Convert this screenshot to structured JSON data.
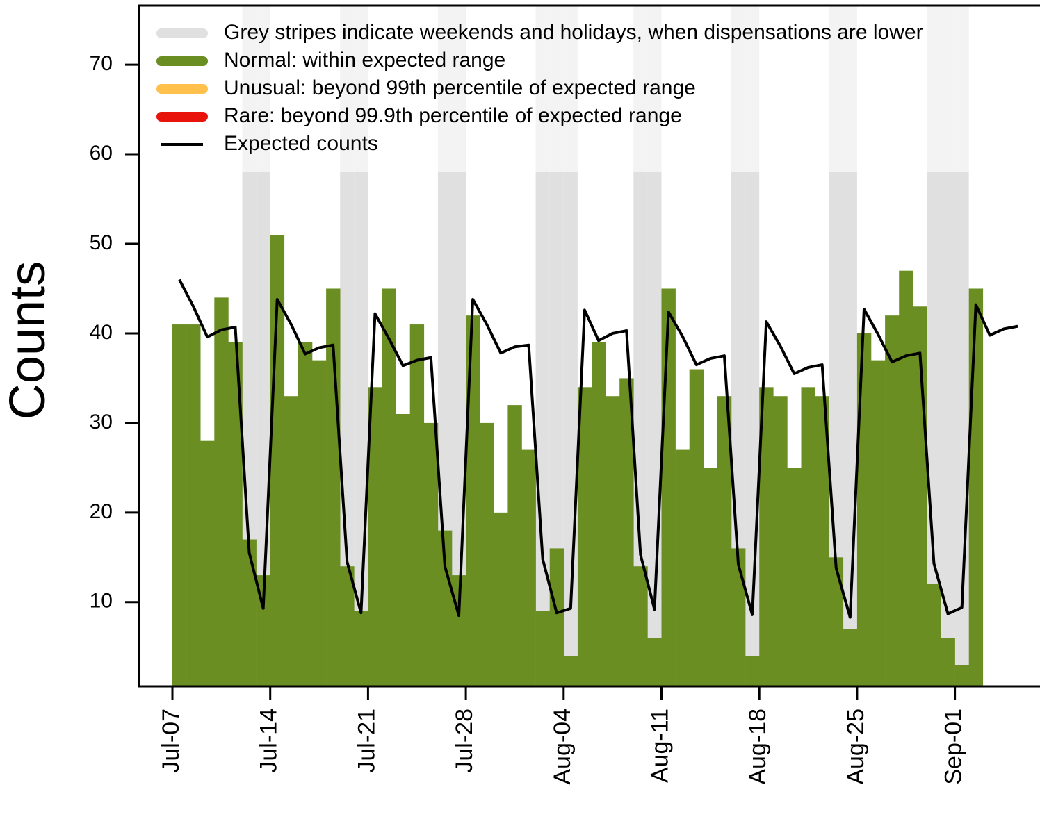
{
  "chart_data": {
    "type": "bar",
    "y_label": "Counts",
    "categories": [
      "Jul-07",
      null,
      null,
      null,
      null,
      null,
      null,
      "Jul-14",
      null,
      null,
      null,
      null,
      null,
      null,
      "Jul-21",
      null,
      null,
      null,
      null,
      null,
      null,
      "Jul-28",
      null,
      null,
      null,
      null,
      null,
      null,
      "Aug-04",
      null,
      null,
      null,
      null,
      null,
      null,
      "Aug-11",
      null,
      null,
      null,
      null,
      null,
      null,
      "Aug-18",
      null,
      null,
      null,
      null,
      null,
      null,
      "Aug-25",
      null,
      null,
      null,
      null,
      null,
      null,
      "Sep-01",
      null,
      null,
      null,
      null
    ],
    "series": [
      {
        "name": "Normal: within expected range",
        "color": "#6b8e23",
        "type": "bar",
        "values": [
          41,
          41,
          28,
          44,
          39,
          17,
          13,
          51,
          33,
          39,
          37,
          45,
          14,
          9,
          34,
          45,
          31,
          41,
          30,
          18,
          13,
          42,
          30,
          20,
          32,
          27,
          9,
          16,
          4,
          34,
          39,
          33,
          35,
          14,
          6,
          45,
          27,
          36,
          25,
          33,
          16,
          4,
          34,
          33,
          25,
          34,
          33,
          15,
          7,
          40,
          37,
          42,
          47,
          43,
          12,
          6,
          3,
          45,
          null,
          null,
          null
        ]
      },
      {
        "name": "Expected counts",
        "color": "#000000",
        "type": "line",
        "values": [
          46,
          43,
          39.6,
          40.4,
          40.7,
          15.5,
          9.3,
          43.8,
          41,
          37.7,
          38.4,
          38.7,
          14.5,
          8.8,
          42.2,
          39.4,
          36.4,
          37,
          37.3,
          14,
          8.5,
          43.8,
          41,
          37.8,
          38.5,
          38.7,
          14.8,
          8.8,
          9.3,
          42.6,
          39.2,
          40,
          40.3,
          15.3,
          9.2,
          42.4,
          39.7,
          36.5,
          37.2,
          37.5,
          14.2,
          8.6,
          41.3,
          38.6,
          35.5,
          36.2,
          36.5,
          13.8,
          8.3,
          42.7,
          39.9,
          36.8,
          37.5,
          37.8,
          14.3,
          8.7,
          9.4,
          43.2,
          39.8,
          40.5,
          40.8
        ]
      }
    ],
    "legend_keys": [
      {
        "name": "Grey stripes indicate weekends and holidays, when dispensations are lower",
        "color": "#e0e0e0"
      },
      {
        "name": "Unusual: beyond 99th percentile of expected range",
        "color": "#ffc04c"
      },
      {
        "name": "Rare: beyond 99.9th percentile of expected range",
        "color": "#e8140c"
      }
    ],
    "shaded": [
      5,
      6,
      12,
      13,
      19,
      20,
      26,
      27,
      28,
      33,
      34,
      40,
      41,
      47,
      48,
      54,
      55,
      56
    ],
    "ylim": [
      0.6,
      76.6
    ],
    "yticks": [
      10,
      20,
      30,
      40,
      50,
      60,
      70
    ]
  }
}
